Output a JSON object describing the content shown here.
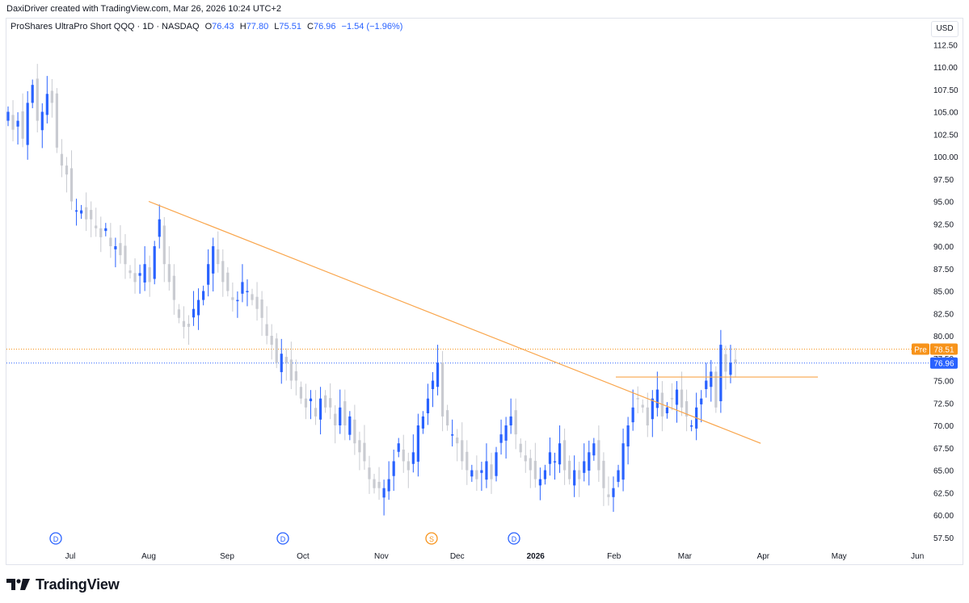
{
  "header": {
    "created_by": "DaxiDriver created with TradingView.com, Mar 26, 2026 10:24 UTC+2"
  },
  "legend": {
    "symbol": "ProShares UltraPro Short QQQ · 1D · NASDAQ",
    "open_label": "O",
    "open": "76.43",
    "high_label": "H",
    "high": "77.80",
    "low_label": "L",
    "low": "75.51",
    "close_label": "C",
    "close": "76.96",
    "change": "−1.54 (−1.96%)"
  },
  "currency": "USD",
  "footer": {
    "brand": "TradingView"
  },
  "chart_data": {
    "type": "candlestick",
    "x_ticks": [
      "Jul",
      "Aug",
      "Sep",
      "Oct",
      "Nov",
      "Dec",
      "2026",
      "Feb",
      "Mar",
      "Apr",
      "May",
      "Jun"
    ],
    "y_ticks": [
      "57.50",
      "60.00",
      "62.50",
      "65.00",
      "67.50",
      "70.00",
      "72.50",
      "75.00",
      "77.50",
      "80.00",
      "82.50",
      "85.00",
      "87.50",
      "90.00",
      "92.50",
      "95.00",
      "97.50",
      "100.00",
      "102.50",
      "105.00",
      "107.50",
      "110.00",
      "112.50"
    ],
    "ylim": [
      56.6,
      114.2
    ],
    "price_labels": {
      "pre_label": "Pre",
      "pre_value": "78.51",
      "last_value": "76.96"
    },
    "levels": {
      "pre": 78.51,
      "last": 76.96,
      "horizontal_line": 75.4
    },
    "trendline": [
      {
        "date": "2025-08-01",
        "value": 95.0
      },
      {
        "date": "2026-03-31",
        "value": 68.0
      }
    ],
    "events": [
      {
        "month": "Jul",
        "symbol": "D"
      },
      {
        "month": "Oct",
        "symbol": "D"
      },
      {
        "month": "Nov",
        "symbol": "S"
      },
      {
        "month": "2026",
        "symbol": "D"
      }
    ],
    "closes": [
      105,
      103,
      104,
      102,
      106,
      108,
      104,
      105,
      107,
      106,
      101,
      99,
      98,
      95,
      94,
      94,
      93,
      93,
      92,
      91,
      92,
      90,
      90,
      89,
      88,
      87,
      86,
      87,
      88,
      86,
      90,
      93,
      88,
      86,
      84,
      82,
      81,
      81,
      83,
      84,
      85,
      88,
      90,
      88,
      86,
      85,
      84,
      84,
      86,
      85,
      84,
      83,
      82,
      80,
      79,
      77,
      78,
      77,
      75,
      75,
      73,
      72,
      73,
      71,
      73,
      72,
      72,
      70,
      72,
      70,
      71,
      68,
      67,
      66,
      64,
      63,
      63,
      63,
      64,
      66,
      68,
      66,
      65,
      67,
      70,
      71,
      73,
      75,
      77,
      71,
      70,
      69,
      68,
      66,
      65,
      65,
      64,
      65,
      66,
      64,
      67,
      69,
      70,
      71,
      69,
      67,
      66,
      65,
      64,
      64,
      65,
      67,
      66,
      68,
      65,
      64,
      65,
      64,
      66,
      67,
      68,
      65,
      63,
      62,
      63,
      65,
      68,
      70,
      72,
      73,
      72,
      70,
      73,
      74,
      71,
      72,
      73,
      74,
      72,
      71,
      70,
      72,
      73,
      75,
      76,
      72,
      79,
      76,
      77,
      77
    ]
  }
}
